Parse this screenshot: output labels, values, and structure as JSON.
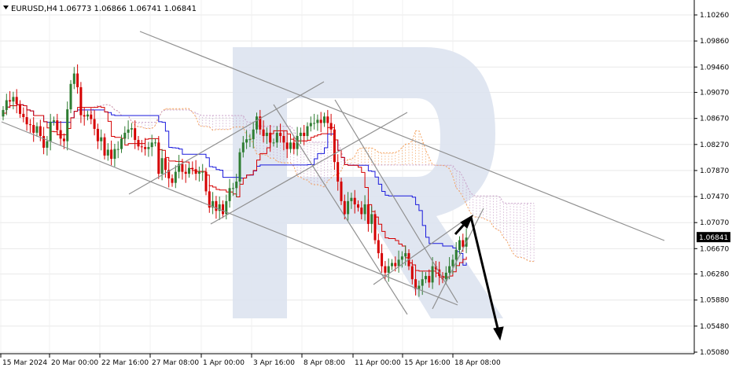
{
  "header": {
    "symbol": "EURUSD,H4",
    "ohlc": "1.06773 1.06866 1.06741 1.06841"
  },
  "colors": {
    "bull": "#2e7d32",
    "bear": "#d50000",
    "kijun": "#1a1adc",
    "tenkan": "#d50000",
    "kumo_a": "#f4a460",
    "kumo_b": "#c8a0c8",
    "channel": "#909090",
    "arrow": "#000000",
    "watermark": "#dde3f0"
  },
  "chart_data": {
    "type": "candlestick",
    "y_axis": {
      "min": 1.0508,
      "max": 1.1026,
      "ticks": [
        "1.10260",
        "1.09860",
        "1.09460",
        "1.09070",
        "1.08670",
        "1.08270",
        "1.07870",
        "1.07470",
        "1.07070",
        "1.06670",
        "1.06280",
        "1.05880",
        "1.05480",
        "1.05080"
      ]
    },
    "x_axis": {
      "ticks": [
        "15 Mar 2024",
        "20 Mar 00:00",
        "22 Mar 16:00",
        "27 Mar 08:00",
        "1 Apr 00:00",
        "3 Apr 16:00",
        "8 Apr 08:00",
        "11 Apr 00:00",
        "15 Apr 16:00",
        "18 Apr 08:00"
      ]
    },
    "current_price": "1.06841",
    "closes": [
      1.088,
      1.0895,
      1.0893,
      1.09,
      1.0889,
      1.0874,
      1.0869,
      1.0858,
      1.0857,
      1.0845,
      1.0855,
      1.084,
      1.0822,
      1.0832,
      1.0862,
      1.0864,
      1.0849,
      1.0836,
      1.0832,
      1.0881,
      1.092,
      1.0936,
      1.0915,
      1.0872,
      1.087,
      1.0873,
      1.0866,
      1.0851,
      1.0832,
      1.0838,
      1.081,
      1.0819,
      1.0805,
      1.082,
      1.082,
      1.0836,
      1.0845,
      1.085,
      1.0852,
      1.0834,
      1.0824,
      1.0823,
      1.082,
      1.0823,
      1.083,
      1.083,
      1.0782,
      1.0806,
      1.0788,
      1.0775,
      1.0768,
      1.0785,
      1.0797,
      1.0785,
      1.0782,
      1.0791,
      1.0789,
      1.0782,
      1.0785,
      1.0785,
      1.0755,
      1.073,
      1.074,
      1.0725,
      1.0735,
      1.072,
      1.074,
      1.076,
      1.076,
      1.077,
      1.0815,
      1.083,
      1.0835,
      1.0835,
      1.085,
      1.087,
      1.085,
      1.084,
      1.0845,
      1.083,
      1.083,
      1.0845,
      1.084,
      1.083,
      1.082,
      1.083,
      1.082,
      1.084,
      1.0845,
      1.084,
      1.0855,
      1.086,
      1.086,
      1.0865,
      1.086,
      1.087,
      1.086,
      1.085,
      1.08,
      1.077,
      1.074,
      1.072,
      1.074,
      1.0745,
      1.0735,
      1.073,
      1.072,
      1.0735,
      1.0705,
      1.072,
      1.068,
      1.066,
      1.064,
      1.063,
      1.064,
      1.0645,
      1.064,
      1.065,
      1.0655,
      1.066,
      1.064,
      1.062,
      1.0605,
      1.061,
      1.062,
      1.0625,
      1.0615,
      1.064,
      1.0635,
      1.0625,
      1.062,
      1.063,
      1.064,
      1.065,
      1.0665,
      1.068,
      1.067,
      1.0684
    ]
  }
}
